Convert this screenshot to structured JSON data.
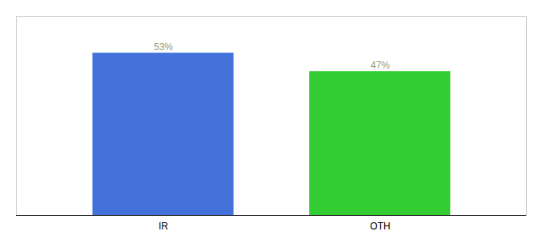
{
  "chart_data": {
    "type": "bar",
    "categories": [
      "IR",
      "OTH"
    ],
    "values": [
      53,
      47
    ],
    "value_labels": [
      "53%",
      "47%"
    ],
    "colors": [
      "#4472db",
      "#33cc33"
    ],
    "ylim": [
      0,
      65
    ],
    "data_labels": true,
    "tick_labels": "x"
  }
}
